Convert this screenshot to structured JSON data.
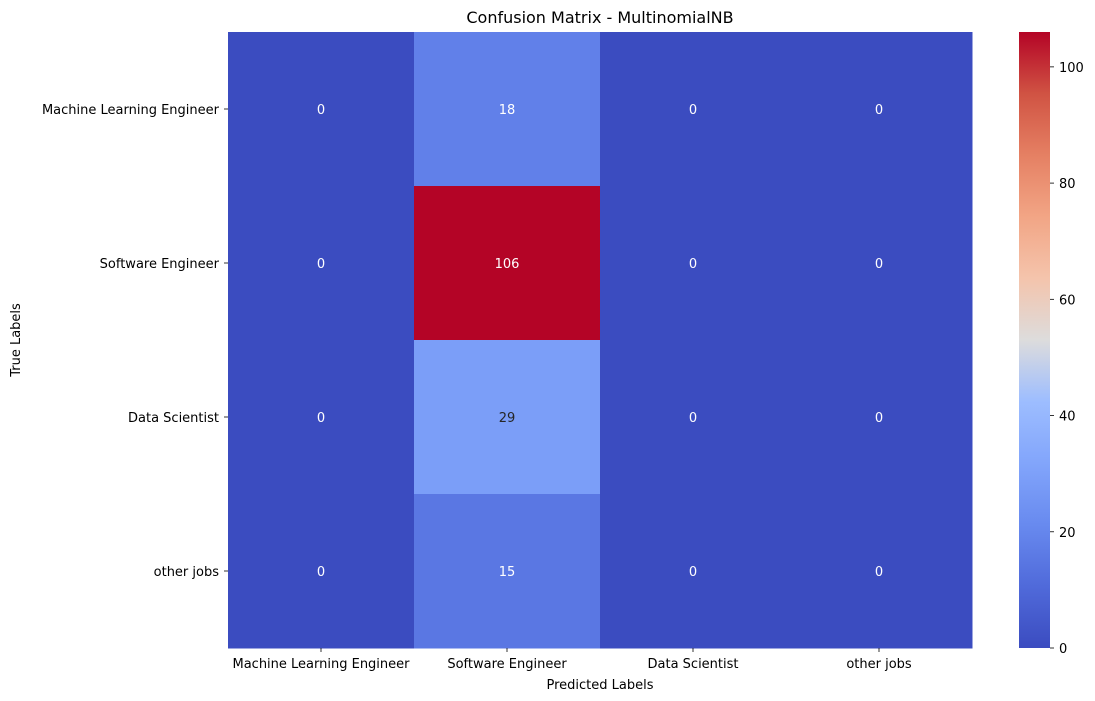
{
  "chart_data": {
    "type": "heatmap",
    "title": "Confusion Matrix - MultinomialNB",
    "xlabel": "Predicted Labels",
    "ylabel": "True Labels",
    "x_categories": [
      "Machine Learning Engineer",
      "Software Engineer",
      "Data Scientist",
      "other jobs"
    ],
    "y_categories": [
      "Machine Learning Engineer",
      "Software Engineer",
      "Data Scientist",
      "other jobs"
    ],
    "values": [
      [
        0,
        18,
        0,
        0
      ],
      [
        0,
        106,
        0,
        0
      ],
      [
        0,
        29,
        0,
        0
      ],
      [
        0,
        15,
        0,
        0
      ]
    ],
    "colormap": "coolwarm",
    "colorbar": {
      "min": 0,
      "max": 106,
      "ticks": [
        0,
        20,
        40,
        60,
        80,
        100
      ]
    },
    "grid": false,
    "annotations": true
  }
}
